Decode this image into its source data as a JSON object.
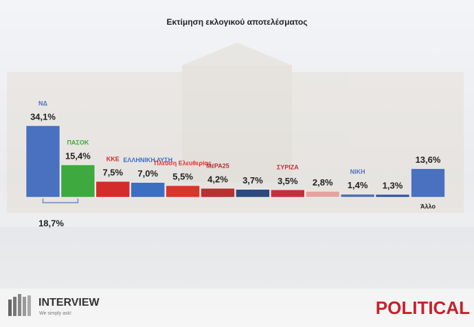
{
  "chart_data": {
    "type": "bar",
    "title": "Εκτίμηση εκλογικού αποτελέσματος",
    "categories": [
      "ΝΔ",
      "ΠΑΣΟΚ",
      "ΚΚΕ",
      "ΕΛΛΗΝΙΚΗ ΛΥΣΗ",
      "Πλεύση Ελευθερίας",
      "ΜέΡΑ25",
      null,
      "ΣΥΡΙΖΑ",
      null,
      "ΝΙΚΗ",
      null,
      "Άλλο"
    ],
    "values": [
      34.1,
      15.4,
      7.5,
      7.0,
      5.5,
      4.2,
      3.7,
      3.5,
      2.8,
      1.4,
      1.3,
      13.6
    ],
    "value_labels": [
      "34,1%",
      "15,4%",
      "7,5%",
      "7,0%",
      "5,5%",
      "4,2%",
      "3,7%",
      "3,5%",
      "2,8%",
      "1,4%",
      "1,3%",
      "13,6%"
    ],
    "colors": [
      "#4a70c0",
      "#3da93f",
      "#d42b2b",
      "#3d6fc0",
      "#d8352b",
      "#b43232",
      "#2d4a7e",
      "#c2303b",
      "#e3a4a0",
      "#5473b3",
      "#3655a3",
      "#4a70c0"
    ],
    "annotation": "18,7%"
  },
  "branding": {
    "left": "INTERVIEW",
    "tagline": "We simply ask!",
    "right": "POLITICAL"
  }
}
